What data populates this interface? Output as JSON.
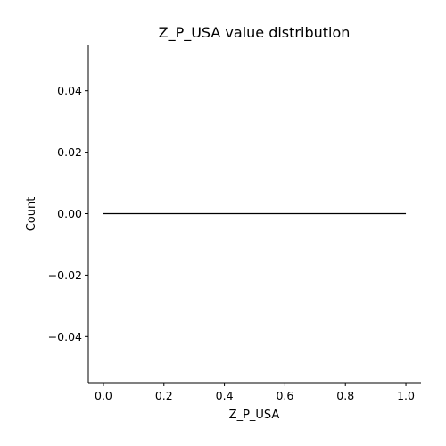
{
  "chart_data": {
    "type": "line",
    "title": "Z_P_USA value distribution",
    "xlabel": "Z_P_USA",
    "ylabel": "Count",
    "xlim": [
      -0.05,
      1.05
    ],
    "ylim": [
      -0.055,
      0.055
    ],
    "xticks": [
      0.0,
      0.2,
      0.4,
      0.6,
      0.8,
      1.0
    ],
    "xtick_labels": [
      "0.0",
      "0.2",
      "0.4",
      "0.6",
      "0.8",
      "1.0"
    ],
    "yticks": [
      -0.04,
      -0.02,
      0.0,
      0.02,
      0.04
    ],
    "ytick_labels": [
      "−0.04",
      "−0.02",
      "0.00",
      "0.02",
      "0.04"
    ],
    "series": [
      {
        "x": [
          0.0,
          1.0
        ],
        "values": [
          0.0,
          0.0
        ],
        "color": "#000000"
      }
    ],
    "grid": false,
    "spines": [
      "left",
      "bottom"
    ]
  }
}
